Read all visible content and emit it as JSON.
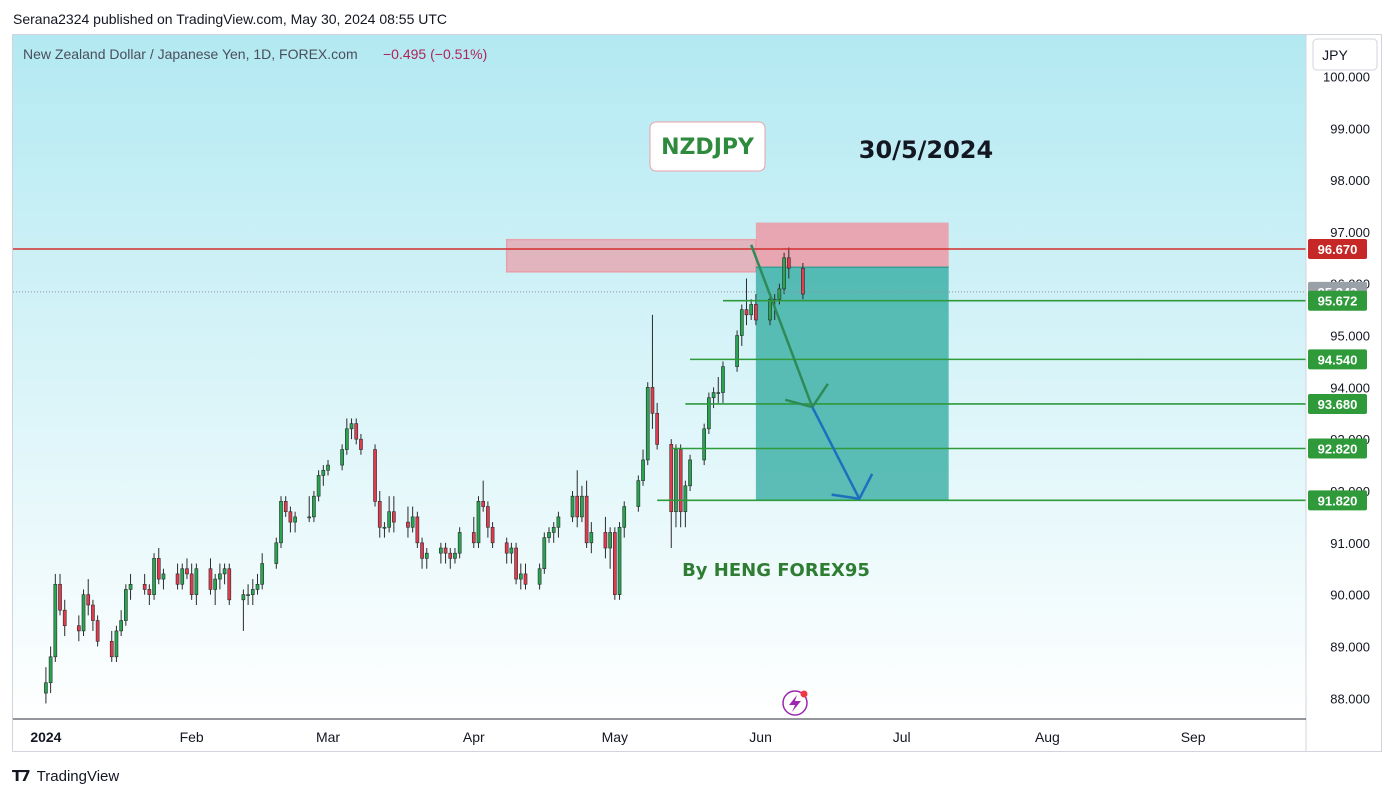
{
  "header": {
    "published": "Serana2324 published on TradingView.com, May 30, 2024 08:55 UTC"
  },
  "footer": {
    "brand": "TradingView"
  },
  "colors": {
    "up": "#26a651",
    "down": "#e23b4f",
    "resistance": "#d32f2f",
    "target": "#2e9a3a",
    "profit": "#26a69a",
    "stop": "#f08d9a",
    "bg_top": "#b3e9f2",
    "bg_bottom": "#ffffff"
  },
  "chart_data": {
    "type": "candlestick",
    "legend": "New Zealand Dollar / Japanese Yen, 1D, FOREX.com",
    "change": "−0.495 (−0.51%)",
    "currency": "JPY",
    "title_box": "NZDJPY",
    "date_label": "30/5/2024",
    "author": "By HENG FOREX95",
    "ylim": [
      87.6,
      100.8
    ],
    "y_ticks": [
      "100.000",
      "99.000",
      "98.000",
      "97.000",
      "96.000",
      "95.000",
      "94.000",
      "93.000",
      "92.000",
      "91.000",
      "90.000",
      "89.000",
      "88.000"
    ],
    "x_ticks": [
      {
        "label": "2024",
        "date": "2024-01-01",
        "bold": true
      },
      {
        "label": "Feb",
        "date": "2024-02-01",
        "bold": false
      },
      {
        "label": "Mar",
        "date": "2024-03-01",
        "bold": false
      },
      {
        "label": "Apr",
        "date": "2024-04-01",
        "bold": false
      },
      {
        "label": "May",
        "date": "2024-05-01",
        "bold": false
      },
      {
        "label": "Jun",
        "date": "2024-06-01",
        "bold": false
      },
      {
        "label": "Jul",
        "date": "2024-07-01",
        "bold": false
      },
      {
        "label": "Aug",
        "date": "2024-08-01",
        "bold": false
      },
      {
        "label": "Sep",
        "date": "2024-09-01",
        "bold": false
      }
    ],
    "x_range": [
      "2023-12-25",
      "2024-09-25"
    ],
    "resistance": {
      "price": 96.67,
      "label": "96.670"
    },
    "current_price": {
      "price": 95.843,
      "label": "95.843"
    },
    "targets": [
      {
        "price": 95.672,
        "label": "95.672",
        "start": "2024-05-24"
      },
      {
        "price": 94.54,
        "label": "94.540",
        "start": "2024-05-17"
      },
      {
        "price": 93.68,
        "label": "93.680",
        "start": "2024-05-16"
      },
      {
        "price": 92.82,
        "label": "92.820",
        "start": "2024-05-13"
      },
      {
        "price": 91.82,
        "label": "91.820",
        "start": "2024-05-10"
      }
    ],
    "zone": {
      "from": "2024-04-08",
      "to": "2024-05-31",
      "top": 96.85,
      "bottom": 96.23
    },
    "position": {
      "from": "2024-05-31",
      "to": "2024-07-11",
      "stop": 97.18,
      "entry": 96.32,
      "target": 91.82
    },
    "arrows": [
      {
        "points": [
          [
            "2024-05-30",
            96.75
          ],
          [
            "2024-06-12",
            93.62
          ]
        ]
      },
      {
        "points": [
          [
            "2024-06-12",
            93.62
          ],
          [
            "2024-06-22",
            91.85
          ]
        ]
      }
    ],
    "candles": [
      {
        "d": "2024-01-01",
        "o": 88.1,
        "h": 88.6,
        "l": 87.9,
        "c": 88.3
      },
      {
        "d": "2024-01-02",
        "o": 88.3,
        "h": 89.0,
        "l": 88.1,
        "c": 88.8
      },
      {
        "d": "2024-01-03",
        "o": 88.8,
        "h": 90.4,
        "l": 88.7,
        "c": 90.2
      },
      {
        "d": "2024-01-04",
        "o": 90.2,
        "h": 90.4,
        "l": 89.6,
        "c": 89.7
      },
      {
        "d": "2024-01-05",
        "o": 89.7,
        "h": 89.9,
        "l": 89.2,
        "c": 89.4
      },
      {
        "d": "2024-01-08",
        "o": 89.4,
        "h": 89.6,
        "l": 89.1,
        "c": 89.3
      },
      {
        "d": "2024-01-09",
        "o": 89.3,
        "h": 90.1,
        "l": 89.2,
        "c": 90.0
      },
      {
        "d": "2024-01-10",
        "o": 90.0,
        "h": 90.3,
        "l": 89.6,
        "c": 89.8
      },
      {
        "d": "2024-01-11",
        "o": 89.8,
        "h": 89.9,
        "l": 89.3,
        "c": 89.5
      },
      {
        "d": "2024-01-12",
        "o": 89.5,
        "h": 89.6,
        "l": 89.0,
        "c": 89.1
      },
      {
        "d": "2024-01-15",
        "o": 89.1,
        "h": 89.3,
        "l": 88.7,
        "c": 88.8
      },
      {
        "d": "2024-01-16",
        "o": 88.8,
        "h": 89.4,
        "l": 88.7,
        "c": 89.3
      },
      {
        "d": "2024-01-17",
        "o": 89.3,
        "h": 89.7,
        "l": 89.2,
        "c": 89.5
      },
      {
        "d": "2024-01-18",
        "o": 89.5,
        "h": 90.2,
        "l": 89.4,
        "c": 90.1
      },
      {
        "d": "2024-01-19",
        "o": 90.1,
        "h": 90.4,
        "l": 89.9,
        "c": 90.2
      },
      {
        "d": "2024-01-22",
        "o": 90.2,
        "h": 90.4,
        "l": 90.0,
        "c": 90.1
      },
      {
        "d": "2024-01-23",
        "o": 90.1,
        "h": 90.2,
        "l": 89.8,
        "c": 90.0
      },
      {
        "d": "2024-01-24",
        "o": 90.0,
        "h": 90.8,
        "l": 89.9,
        "c": 90.7
      },
      {
        "d": "2024-01-25",
        "o": 90.7,
        "h": 90.9,
        "l": 90.2,
        "c": 90.3
      },
      {
        "d": "2024-01-26",
        "o": 90.3,
        "h": 90.5,
        "l": 90.1,
        "c": 90.4
      },
      {
        "d": "2024-01-29",
        "o": 90.4,
        "h": 90.6,
        "l": 90.1,
        "c": 90.2
      },
      {
        "d": "2024-01-30",
        "o": 90.2,
        "h": 90.6,
        "l": 90.1,
        "c": 90.5
      },
      {
        "d": "2024-01-31",
        "o": 90.5,
        "h": 90.7,
        "l": 90.3,
        "c": 90.4
      },
      {
        "d": "2024-02-01",
        "o": 90.4,
        "h": 90.6,
        "l": 89.9,
        "c": 90.0
      },
      {
        "d": "2024-02-02",
        "o": 90.0,
        "h": 90.6,
        "l": 89.8,
        "c": 90.5
      },
      {
        "d": "2024-02-05",
        "o": 90.5,
        "h": 90.7,
        "l": 90.0,
        "c": 90.1
      },
      {
        "d": "2024-02-06",
        "o": 90.1,
        "h": 90.4,
        "l": 89.8,
        "c": 90.3
      },
      {
        "d": "2024-02-07",
        "o": 90.3,
        "h": 90.6,
        "l": 90.1,
        "c": 90.4
      },
      {
        "d": "2024-02-08",
        "o": 90.4,
        "h": 90.6,
        "l": 90.2,
        "c": 90.5
      },
      {
        "d": "2024-02-09",
        "o": 90.5,
        "h": 90.6,
        "l": 89.8,
        "c": 89.9
      },
      {
        "d": "2024-02-12",
        "o": 89.9,
        "h": 90.1,
        "l": 89.3,
        "c": 90.0
      },
      {
        "d": "2024-02-13",
        "o": 90.0,
        "h": 90.2,
        "l": 89.8,
        "c": 90.0
      },
      {
        "d": "2024-02-14",
        "o": 90.0,
        "h": 90.3,
        "l": 89.8,
        "c": 90.1
      },
      {
        "d": "2024-02-15",
        "o": 90.1,
        "h": 90.4,
        "l": 90.0,
        "c": 90.2
      },
      {
        "d": "2024-02-16",
        "o": 90.2,
        "h": 90.8,
        "l": 90.1,
        "c": 90.6
      },
      {
        "d": "2024-02-19",
        "o": 90.6,
        "h": 91.1,
        "l": 90.5,
        "c": 91.0
      },
      {
        "d": "2024-02-20",
        "o": 91.0,
        "h": 91.9,
        "l": 90.9,
        "c": 91.8
      },
      {
        "d": "2024-02-21",
        "o": 91.8,
        "h": 91.9,
        "l": 91.5,
        "c": 91.6
      },
      {
        "d": "2024-02-22",
        "o": 91.6,
        "h": 91.7,
        "l": 91.2,
        "c": 91.4
      },
      {
        "d": "2024-02-23",
        "o": 91.4,
        "h": 91.6,
        "l": 91.2,
        "c": 91.5
      },
      {
        "d": "2024-02-26",
        "o": 91.5,
        "h": 91.9,
        "l": 91.4,
        "c": 91.5
      },
      {
        "d": "2024-02-27",
        "o": 91.5,
        "h": 92.0,
        "l": 91.4,
        "c": 91.9
      },
      {
        "d": "2024-02-28",
        "o": 91.9,
        "h": 92.4,
        "l": 91.8,
        "c": 92.3
      },
      {
        "d": "2024-02-29",
        "o": 92.3,
        "h": 92.5,
        "l": 92.1,
        "c": 92.4
      },
      {
        "d": "2024-03-01",
        "o": 92.4,
        "h": 92.6,
        "l": 92.3,
        "c": 92.5
      },
      {
        "d": "2024-03-04",
        "o": 92.5,
        "h": 92.9,
        "l": 92.4,
        "c": 92.8
      },
      {
        "d": "2024-03-05",
        "o": 92.8,
        "h": 93.4,
        "l": 92.7,
        "c": 93.2
      },
      {
        "d": "2024-03-06",
        "o": 93.2,
        "h": 93.4,
        "l": 93.0,
        "c": 93.3
      },
      {
        "d": "2024-03-07",
        "o": 93.3,
        "h": 93.4,
        "l": 92.9,
        "c": 93.0
      },
      {
        "d": "2024-03-08",
        "o": 93.0,
        "h": 93.1,
        "l": 92.7,
        "c": 92.8
      },
      {
        "d": "2024-03-11",
        "o": 92.8,
        "h": 92.9,
        "l": 91.7,
        "c": 91.8
      },
      {
        "d": "2024-03-12",
        "o": 91.8,
        "h": 92.0,
        "l": 91.1,
        "c": 91.3
      },
      {
        "d": "2024-03-13",
        "o": 91.3,
        "h": 91.4,
        "l": 91.1,
        "c": 91.3
      },
      {
        "d": "2024-03-14",
        "o": 91.3,
        "h": 91.9,
        "l": 91.2,
        "c": 91.6
      },
      {
        "d": "2024-03-15",
        "o": 91.6,
        "h": 91.9,
        "l": 91.2,
        "c": 91.4
      },
      {
        "d": "2024-03-18",
        "o": 91.4,
        "h": 91.7,
        "l": 91.1,
        "c": 91.3
      },
      {
        "d": "2024-03-19",
        "o": 91.3,
        "h": 91.7,
        "l": 91.2,
        "c": 91.5
      },
      {
        "d": "2024-03-20",
        "o": 91.5,
        "h": 91.6,
        "l": 90.9,
        "c": 91.0
      },
      {
        "d": "2024-03-21",
        "o": 91.0,
        "h": 91.1,
        "l": 90.5,
        "c": 90.7
      },
      {
        "d": "2024-03-22",
        "o": 90.7,
        "h": 90.9,
        "l": 90.5,
        "c": 90.8
      },
      {
        "d": "2024-03-25",
        "o": 90.8,
        "h": 91.0,
        "l": 90.6,
        "c": 90.9
      },
      {
        "d": "2024-03-26",
        "o": 90.9,
        "h": 91.0,
        "l": 90.6,
        "c": 90.8
      },
      {
        "d": "2024-03-27",
        "o": 90.8,
        "h": 90.9,
        "l": 90.5,
        "c": 90.7
      },
      {
        "d": "2024-03-28",
        "o": 90.7,
        "h": 90.9,
        "l": 90.6,
        "c": 90.8
      },
      {
        "d": "2024-03-29",
        "o": 90.8,
        "h": 91.3,
        "l": 90.7,
        "c": 91.2
      },
      {
        "d": "2024-04-01",
        "o": 91.2,
        "h": 91.5,
        "l": 90.9,
        "c": 91.0
      },
      {
        "d": "2024-04-02",
        "o": 91.0,
        "h": 91.9,
        "l": 90.9,
        "c": 91.8
      },
      {
        "d": "2024-04-03",
        "o": 91.8,
        "h": 92.2,
        "l": 91.6,
        "c": 91.7
      },
      {
        "d": "2024-04-04",
        "o": 91.7,
        "h": 91.8,
        "l": 91.1,
        "c": 91.3
      },
      {
        "d": "2024-04-05",
        "o": 91.3,
        "h": 91.4,
        "l": 90.9,
        "c": 91.0
      },
      {
        "d": "2024-04-08",
        "o": 91.0,
        "h": 91.1,
        "l": 90.6,
        "c": 90.8
      },
      {
        "d": "2024-04-09",
        "o": 90.8,
        "h": 91.0,
        "l": 90.6,
        "c": 90.9
      },
      {
        "d": "2024-04-10",
        "o": 90.9,
        "h": 91.0,
        "l": 90.2,
        "c": 90.3
      },
      {
        "d": "2024-04-11",
        "o": 90.3,
        "h": 90.6,
        "l": 90.1,
        "c": 90.4
      },
      {
        "d": "2024-04-12",
        "o": 90.4,
        "h": 90.6,
        "l": 90.1,
        "c": 90.2
      },
      {
        "d": "2024-04-15",
        "o": 90.2,
        "h": 90.6,
        "l": 90.1,
        "c": 90.5
      },
      {
        "d": "2024-04-16",
        "o": 90.5,
        "h": 91.2,
        "l": 90.4,
        "c": 91.1
      },
      {
        "d": "2024-04-17",
        "o": 91.1,
        "h": 91.3,
        "l": 91.0,
        "c": 91.2
      },
      {
        "d": "2024-04-18",
        "o": 91.2,
        "h": 91.4,
        "l": 91.0,
        "c": 91.3
      },
      {
        "d": "2024-04-19",
        "o": 91.3,
        "h": 91.6,
        "l": 91.1,
        "c": 91.5
      },
      {
        "d": "2024-04-22",
        "o": 91.5,
        "h": 92.0,
        "l": 91.4,
        "c": 91.9
      },
      {
        "d": "2024-04-23",
        "o": 91.9,
        "h": 92.4,
        "l": 91.3,
        "c": 91.5
      },
      {
        "d": "2024-04-24",
        "o": 91.5,
        "h": 92.1,
        "l": 91.4,
        "c": 91.9
      },
      {
        "d": "2024-04-25",
        "o": 91.9,
        "h": 92.2,
        "l": 90.9,
        "c": 91.0
      },
      {
        "d": "2024-04-26",
        "o": 91.0,
        "h": 91.4,
        "l": 90.8,
        "c": 91.2
      },
      {
        "d": "2024-04-29",
        "o": 91.2,
        "h": 91.5,
        "l": 90.7,
        "c": 90.9
      },
      {
        "d": "2024-04-30",
        "o": 90.9,
        "h": 91.3,
        "l": 90.5,
        "c": 91.2
      },
      {
        "d": "2024-05-01",
        "o": 91.2,
        "h": 91.3,
        "l": 89.9,
        "c": 90.0
      },
      {
        "d": "2024-05-02",
        "o": 90.0,
        "h": 91.4,
        "l": 89.9,
        "c": 91.3
      },
      {
        "d": "2024-05-03",
        "o": 91.3,
        "h": 91.8,
        "l": 91.1,
        "c": 91.7
      },
      {
        "d": "2024-05-06",
        "o": 91.7,
        "h": 92.3,
        "l": 91.6,
        "c": 92.2
      },
      {
        "d": "2024-05-07",
        "o": 92.2,
        "h": 92.8,
        "l": 92.1,
        "c": 92.6
      },
      {
        "d": "2024-05-08",
        "o": 92.6,
        "h": 94.1,
        "l": 92.5,
        "c": 94.0
      },
      {
        "d": "2024-05-09",
        "o": 94.0,
        "h": 95.4,
        "l": 93.2,
        "c": 93.5
      },
      {
        "d": "2024-05-10",
        "o": 93.5,
        "h": 93.7,
        "l": 92.8,
        "c": 92.9
      },
      {
        "d": "2024-05-13",
        "o": 92.9,
        "h": 93.0,
        "l": 90.9,
        "c": 91.6
      },
      {
        "d": "2024-05-14",
        "o": 91.6,
        "h": 92.9,
        "l": 91.3,
        "c": 92.8
      },
      {
        "d": "2024-05-15",
        "o": 92.8,
        "h": 92.9,
        "l": 91.3,
        "c": 91.6
      },
      {
        "d": "2024-05-16",
        "o": 91.6,
        "h": 92.2,
        "l": 91.3,
        "c": 92.1
      },
      {
        "d": "2024-05-17",
        "o": 92.1,
        "h": 92.7,
        "l": 92.0,
        "c": 92.6
      },
      {
        "d": "2024-05-20",
        "o": 92.6,
        "h": 93.3,
        "l": 92.5,
        "c": 93.2
      },
      {
        "d": "2024-05-21",
        "o": 93.2,
        "h": 93.9,
        "l": 93.1,
        "c": 93.8
      },
      {
        "d": "2024-05-22",
        "o": 93.8,
        "h": 94.0,
        "l": 93.6,
        "c": 93.9
      },
      {
        "d": "2024-05-23",
        "o": 93.9,
        "h": 94.2,
        "l": 93.7,
        "c": 93.9
      },
      {
        "d": "2024-05-24",
        "o": 93.9,
        "h": 94.5,
        "l": 93.7,
        "c": 94.4
      },
      {
        "d": "2024-05-27",
        "o": 94.4,
        "h": 95.1,
        "l": 94.3,
        "c": 95.0
      },
      {
        "d": "2024-05-28",
        "o": 95.0,
        "h": 95.6,
        "l": 94.8,
        "c": 95.5
      },
      {
        "d": "2024-05-29",
        "o": 95.5,
        "h": 96.1,
        "l": 95.2,
        "c": 95.4
      },
      {
        "d": "2024-05-30",
        "o": 95.4,
        "h": 95.7,
        "l": 95.3,
        "c": 95.6
      },
      {
        "d": "2024-05-31",
        "o": 95.6,
        "h": 95.8,
        "l": 95.2,
        "c": 95.3
      },
      {
        "d": "2024-06-03",
        "o": 95.3,
        "h": 95.8,
        "l": 95.2,
        "c": 95.7
      },
      {
        "d": "2024-06-04",
        "o": 95.7,
        "h": 95.8,
        "l": 95.3,
        "c": 95.7
      },
      {
        "d": "2024-06-05",
        "o": 95.7,
        "h": 96.0,
        "l": 95.6,
        "c": 95.9
      },
      {
        "d": "2024-06-06",
        "o": 95.9,
        "h": 96.6,
        "l": 95.8,
        "c": 96.5
      },
      {
        "d": "2024-06-07",
        "o": 96.5,
        "h": 96.7,
        "l": 96.1,
        "c": 96.3
      },
      {
        "d": "2024-06-10",
        "o": 96.3,
        "h": 96.4,
        "l": 95.7,
        "c": 95.8
      }
    ]
  }
}
